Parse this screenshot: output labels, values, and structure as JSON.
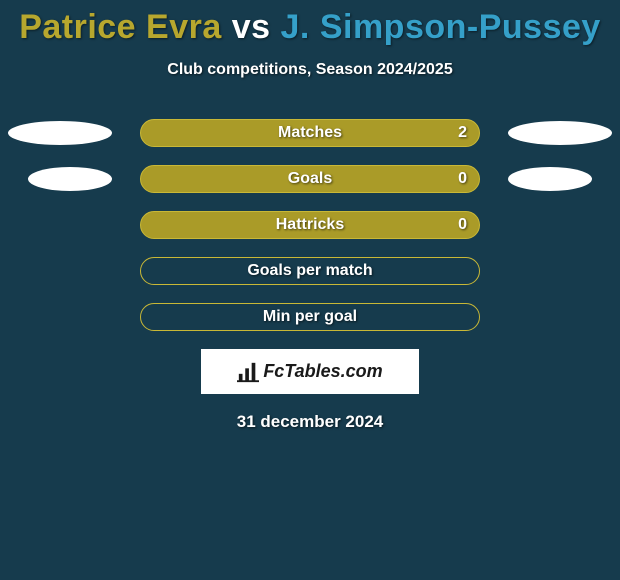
{
  "title": {
    "player1": "Patrice Evra",
    "vs": "vs",
    "player2": "J. Simpson-Pussey",
    "player1_color": "#b7a72e",
    "vs_color": "#ffffff",
    "player2_color": "#35a0c9"
  },
  "subtitle": "Club competitions, Season 2024/2025",
  "bar_style": {
    "fill_color": "#aa9b28",
    "border_color": "#c9b836",
    "empty_fill": "transparent"
  },
  "ellipse_color": "#ffffff",
  "background_color": "#163b4d",
  "rows": [
    {
      "label": "Matches",
      "value": "2",
      "filled": true,
      "show_value": true,
      "left_ellipse": true,
      "right_ellipse": true
    },
    {
      "label": "Goals",
      "value": "0",
      "filled": true,
      "show_value": true,
      "left_ellipse": true,
      "right_ellipse": true
    },
    {
      "label": "Hattricks",
      "value": "0",
      "filled": true,
      "show_value": true,
      "left_ellipse": false,
      "right_ellipse": false
    },
    {
      "label": "Goals per match",
      "value": "",
      "filled": false,
      "show_value": false,
      "left_ellipse": false,
      "right_ellipse": false
    },
    {
      "label": "Min per goal",
      "value": "",
      "filled": false,
      "show_value": false,
      "left_ellipse": false,
      "right_ellipse": false
    }
  ],
  "logo_text": "FcTables.com",
  "date": "31 december 2024"
}
